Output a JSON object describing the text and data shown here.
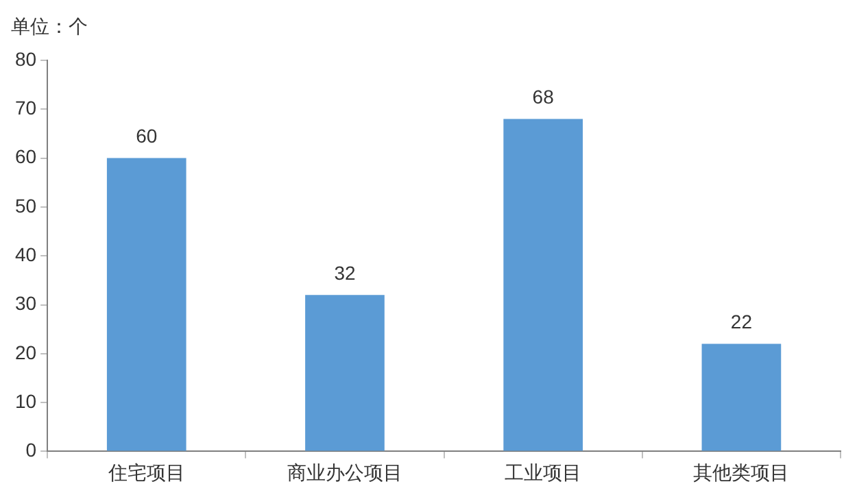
{
  "chart_data": {
    "type": "bar",
    "ylabel": "单位：个",
    "categories": [
      "住宅项目",
      "商业办公项目",
      "工业项目",
      "其他类项目"
    ],
    "values": [
      60,
      32,
      68,
      22
    ],
    "color": "#5b9bd5",
    "ylim": [
      0,
      80
    ],
    "yticks": [
      0,
      10,
      20,
      30,
      40,
      50,
      60,
      70,
      80
    ],
    "grid": false,
    "legend": false,
    "data_labels": true
  }
}
